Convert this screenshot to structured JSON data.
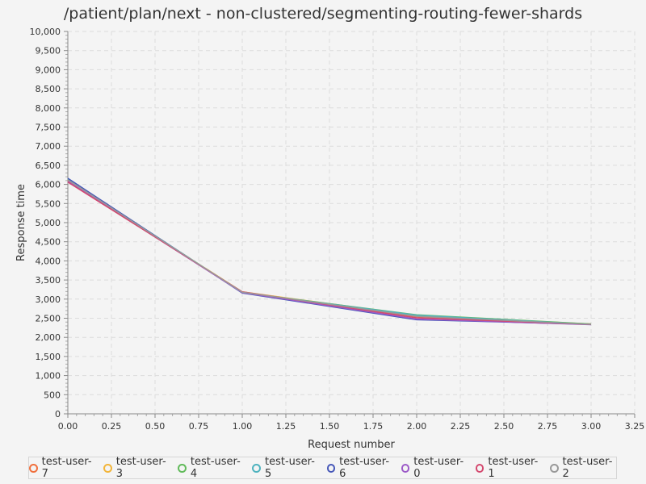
{
  "chart_data": {
    "type": "line",
    "title": "/patient/plan/next - non-clustered/segmenting-routing-fewer-shards",
    "xlabel": "Request number",
    "ylabel": "Response time",
    "xlim": [
      0,
      3.25
    ],
    "ylim": [
      0,
      10000
    ],
    "x_ticks": [
      "0.00",
      "0.25",
      "0.50",
      "0.75",
      "1.00",
      "1.25",
      "1.50",
      "1.75",
      "2.00",
      "2.25",
      "2.50",
      "2.75",
      "3.00",
      "3.25"
    ],
    "y_ticks": [
      "0",
      "500",
      "1,000",
      "1,500",
      "2,000",
      "2,500",
      "3,000",
      "3,500",
      "4,000",
      "4,500",
      "5,000",
      "5,500",
      "6,000",
      "6,500",
      "7,000",
      "7,500",
      "8,000",
      "8,500",
      "9,000",
      "9,500",
      "10,000"
    ],
    "grid": true,
    "legend_position": "bottom",
    "x": [
      0,
      1,
      2,
      3
    ],
    "series": [
      {
        "name": "test-user-7",
        "color": "#f0703e",
        "values": [
          6100,
          3180,
          2540,
          2340
        ]
      },
      {
        "name": "test-user-3",
        "color": "#f2b53a",
        "values": [
          6110,
          3190,
          2570,
          2350
        ]
      },
      {
        "name": "test-user-4",
        "color": "#62bb5b",
        "values": [
          6140,
          3170,
          2590,
          2350
        ]
      },
      {
        "name": "test-user-5",
        "color": "#4fb3bf",
        "values": [
          6150,
          3170,
          2580,
          2340
        ]
      },
      {
        "name": "test-user-6",
        "color": "#4657b8",
        "values": [
          6160,
          3160,
          2460,
          2340
        ]
      },
      {
        "name": "test-user-0",
        "color": "#9c5ac8",
        "values": [
          6080,
          3170,
          2480,
          2330
        ]
      },
      {
        "name": "test-user-1",
        "color": "#d4486e",
        "values": [
          6060,
          3190,
          2510,
          2340
        ]
      },
      {
        "name": "test-user-2",
        "color": "#999999",
        "values": [
          6120,
          3180,
          2550,
          2340
        ]
      }
    ]
  }
}
